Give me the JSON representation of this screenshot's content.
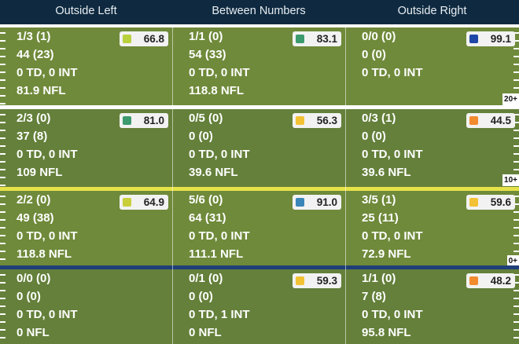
{
  "columns": [
    "Outside Left",
    "Between Numbers",
    "Outside Right"
  ],
  "colors": {
    "header_bg": "#0f2a40",
    "field_a": "#6f8a3a",
    "field_b": "#64803a",
    "sep_white": "#ffffff",
    "sep_yellow": "#e6e24a",
    "sep_blue": "#1f3f78"
  },
  "rows": [
    {
      "yard_tag": "20+",
      "cells": [
        {
          "lines": [
            "1/3 (1)",
            "44 (23)",
            "0 TD, 0 INT",
            "81.9 NFL"
          ],
          "grade": "66.8",
          "grade_color": "#b8d13d"
        },
        {
          "lines": [
            "1/1 (0)",
            "54 (33)",
            "0 TD, 0 INT",
            "118.8 NFL"
          ],
          "grade": "83.1",
          "grade_color": "#3c9a6e"
        },
        {
          "lines": [
            "0/0 (0)",
            "0 (0)",
            "0 TD, 0 INT",
            ""
          ],
          "grade": "99.1",
          "grade_color": "#1f47a8"
        }
      ]
    },
    {
      "yard_tag": "10+",
      "cells": [
        {
          "lines": [
            "2/3 (0)",
            "37 (8)",
            "0 TD, 0 INT",
            "109 NFL"
          ],
          "grade": "81.0",
          "grade_color": "#3c9a6e"
        },
        {
          "lines": [
            "0/5 (0)",
            "0 (0)",
            "0 TD, 0 INT",
            "39.6 NFL"
          ],
          "grade": "56.3",
          "grade_color": "#f2c234"
        },
        {
          "lines": [
            "0/3 (1)",
            "0 (0)",
            "0 TD, 0 INT",
            "39.6 NFL"
          ],
          "grade": "44.5",
          "grade_color": "#f28a2e"
        }
      ]
    },
    {
      "yard_tag": "0+",
      "cells": [
        {
          "lines": [
            "2/2 (0)",
            "49 (38)",
            "0 TD, 0 INT",
            "118.8 NFL"
          ],
          "grade": "64.9",
          "grade_color": "#c9cf3b"
        },
        {
          "lines": [
            "5/6 (0)",
            "64 (31)",
            "0 TD, 0 INT",
            "111.1 NFL"
          ],
          "grade": "91.0",
          "grade_color": "#3a86b8"
        },
        {
          "lines": [
            "3/5 (1)",
            "25 (11)",
            "0 TD, 0 INT",
            "72.9 NFL"
          ],
          "grade": "59.6",
          "grade_color": "#f2c234"
        }
      ]
    },
    {
      "yard_tag": "",
      "cells": [
        {
          "lines": [
            "0/0 (0)",
            "0 (0)",
            "0 TD, 0 INT",
            "0 NFL"
          ],
          "grade": "",
          "grade_color": ""
        },
        {
          "lines": [
            "0/1 (0)",
            "0 (0)",
            "0 TD, 1 INT",
            "0 NFL"
          ],
          "grade": "59.3",
          "grade_color": "#f2c234"
        },
        {
          "lines": [
            "1/1 (0)",
            "7 (8)",
            "0 TD, 0 INT",
            "95.8 NFL"
          ],
          "grade": "48.2",
          "grade_color": "#f28a2e"
        }
      ]
    }
  ]
}
